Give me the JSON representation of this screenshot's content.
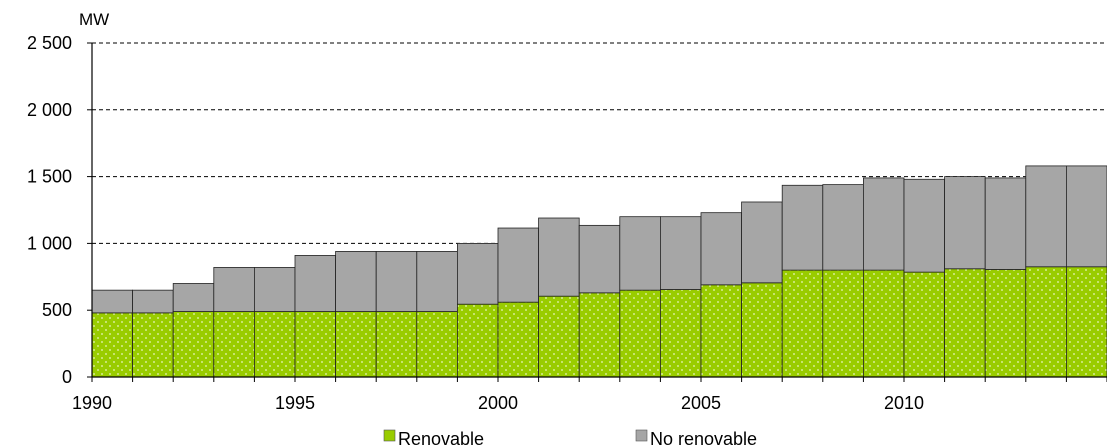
{
  "chart_data": {
    "type": "bar",
    "stacked": true,
    "title": "",
    "xlabel": "",
    "ylabel": "MW",
    "ylim": [
      0,
      2500
    ],
    "yticks": [
      0,
      500,
      1000,
      1500,
      2000,
      2500
    ],
    "ytick_labels": [
      "0",
      "500",
      "1 000",
      "1 500",
      "2 000",
      "2 500"
    ],
    "xtick_labels": [
      "1990",
      "1995",
      "2000",
      "2005",
      "2010"
    ],
    "grid": "horizontal-dashed",
    "legend_position": "bottom",
    "categories": [
      "1990",
      "1991",
      "1992",
      "1993",
      "1994",
      "1995",
      "1996",
      "1997",
      "1998",
      "1999",
      "2000",
      "2001",
      "2002",
      "2003",
      "2004",
      "2005",
      "2006",
      "2007",
      "2008",
      "2009",
      "2010",
      "2011",
      "2012",
      "2013",
      "2014"
    ],
    "series": [
      {
        "name": "Renovable",
        "color": "#99cc00",
        "values": [
          480,
          480,
          490,
          490,
          490,
          490,
          490,
          490,
          490,
          545,
          560,
          605,
          630,
          650,
          655,
          690,
          705,
          800,
          800,
          800,
          785,
          810,
          805,
          825,
          825
        ]
      },
      {
        "name": "No renovable",
        "color": "#a6a6a6",
        "values": [
          170,
          170,
          210,
          330,
          330,
          420,
          450,
          450,
          450,
          455,
          555,
          585,
          505,
          550,
          545,
          540,
          605,
          635,
          640,
          690,
          695,
          690,
          685,
          755,
          755
        ]
      }
    ]
  }
}
